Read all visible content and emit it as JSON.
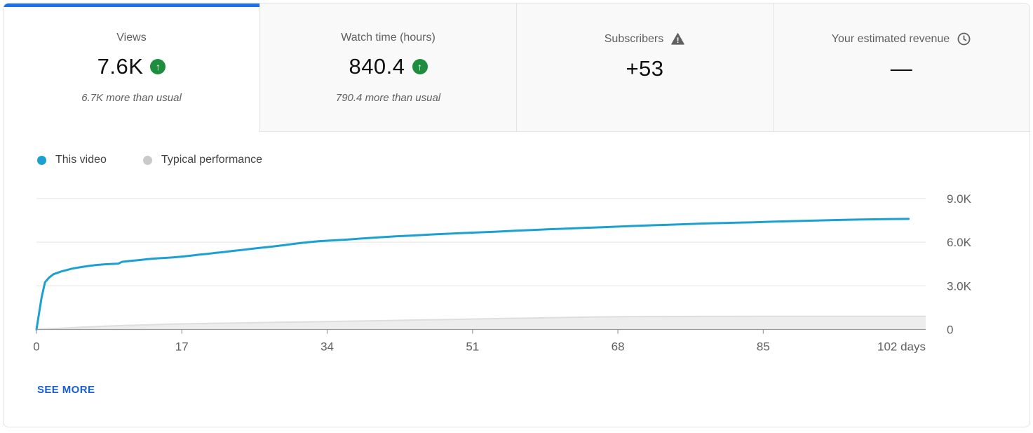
{
  "colors": {
    "accent_blue": "#1a73e8",
    "link_blue": "#1a5fd2",
    "line_blue": "#1ca0d2",
    "typical_gray": "#c9c9c9",
    "band_fill": "#ededed",
    "band_edge": "#dedede",
    "green_badge": "#1e8e3e",
    "grid_line": "#ececec",
    "axis_line": "#9a9a9a"
  },
  "icons": {
    "up_arrow": "↑",
    "warning": "triangle-exclamation",
    "clock": "clock-outline"
  },
  "tabs": [
    {
      "label": "Views",
      "value": "7.6K",
      "delta": "6.7K more than usual",
      "active": true
    },
    {
      "label": "Watch time (hours)",
      "value": "840.4",
      "delta": "790.4 more than usual",
      "active": false
    },
    {
      "label": "Subscribers",
      "value": "+53",
      "delta": "",
      "active": false
    },
    {
      "label": "Your estimated revenue",
      "value": "—",
      "delta": "",
      "active": false
    }
  ],
  "legend": [
    {
      "label": "This video",
      "color": "#1ca0d2"
    },
    {
      "label": "Typical performance",
      "color": "#c9c9c9"
    }
  ],
  "see_more_label": "SEE MORE",
  "chart_data": {
    "type": "line",
    "title": "Video views over time vs typical performance",
    "xlabel": "days",
    "ylabel": "Views",
    "xlim": [
      0,
      104
    ],
    "ylim": [
      0,
      10200
    ],
    "grid": true,
    "legend_position": "top-left",
    "x_ticks": [
      0,
      17,
      34,
      51,
      68,
      85
    ],
    "x_end_label": "102 days",
    "y_ticks": [
      {
        "value": 0,
        "label": "0"
      },
      {
        "value": 3000,
        "label": "3.0K"
      },
      {
        "value": 6000,
        "label": "6.0K"
      },
      {
        "value": 9000,
        "label": "9.0K"
      }
    ],
    "series": [
      {
        "name": "Typical performance",
        "type": "area",
        "fill_color": "#ededed",
        "edge_color": "#dedede",
        "points": [
          [
            0,
            0
          ],
          [
            2,
            60
          ],
          [
            4,
            120
          ],
          [
            6,
            175
          ],
          [
            8,
            225
          ],
          [
            10,
            270
          ],
          [
            13,
            320
          ],
          [
            16,
            370
          ],
          [
            20,
            415
          ],
          [
            24,
            455
          ],
          [
            28,
            490
          ],
          [
            32,
            525
          ],
          [
            36,
            565
          ],
          [
            40,
            605
          ],
          [
            45,
            655
          ],
          [
            50,
            705
          ],
          [
            55,
            755
          ],
          [
            60,
            805
          ],
          [
            63,
            840
          ],
          [
            66,
            870
          ],
          [
            70,
            885
          ],
          [
            75,
            893
          ],
          [
            80,
            897
          ],
          [
            85,
            900
          ],
          [
            90,
            902
          ],
          [
            95,
            904
          ],
          [
            100,
            905
          ],
          [
            104,
            905
          ]
        ]
      },
      {
        "name": "This video",
        "type": "line",
        "color": "#1ca0d2",
        "points": [
          [
            0,
            0
          ],
          [
            0.6,
            2200
          ],
          [
            1,
            3250
          ],
          [
            1.5,
            3580
          ],
          [
            2,
            3800
          ],
          [
            2.5,
            3900
          ],
          [
            3,
            4010
          ],
          [
            3.5,
            4080
          ],
          [
            4,
            4160
          ],
          [
            5,
            4270
          ],
          [
            6,
            4360
          ],
          [
            7,
            4430
          ],
          [
            8,
            4480
          ],
          [
            9,
            4510
          ],
          [
            9.6,
            4530
          ],
          [
            10,
            4650
          ],
          [
            11,
            4710
          ],
          [
            12,
            4770
          ],
          [
            13,
            4830
          ],
          [
            14,
            4880
          ],
          [
            15,
            4920
          ],
          [
            16,
            4960
          ],
          [
            17,
            5010
          ],
          [
            18,
            5070
          ],
          [
            19,
            5140
          ],
          [
            20,
            5200
          ],
          [
            21,
            5270
          ],
          [
            22,
            5330
          ],
          [
            23,
            5400
          ],
          [
            24,
            5460
          ],
          [
            25,
            5530
          ],
          [
            26,
            5600
          ],
          [
            27,
            5660
          ],
          [
            28,
            5730
          ],
          [
            29,
            5800
          ],
          [
            30,
            5880
          ],
          [
            31,
            5950
          ],
          [
            32,
            6010
          ],
          [
            33,
            6060
          ],
          [
            34,
            6100
          ],
          [
            36,
            6170
          ],
          [
            38,
            6250
          ],
          [
            40,
            6330
          ],
          [
            42,
            6400
          ],
          [
            44,
            6460
          ],
          [
            46,
            6520
          ],
          [
            48,
            6580
          ],
          [
            50,
            6630
          ],
          [
            52,
            6680
          ],
          [
            54,
            6730
          ],
          [
            56,
            6790
          ],
          [
            58,
            6840
          ],
          [
            60,
            6890
          ],
          [
            62,
            6930
          ],
          [
            64,
            6980
          ],
          [
            66,
            7020
          ],
          [
            68,
            7070
          ],
          [
            70,
            7120
          ],
          [
            72,
            7160
          ],
          [
            74,
            7200
          ],
          [
            76,
            7240
          ],
          [
            78,
            7280
          ],
          [
            80,
            7310
          ],
          [
            82,
            7340
          ],
          [
            84,
            7370
          ],
          [
            86,
            7410
          ],
          [
            88,
            7440
          ],
          [
            90,
            7470
          ],
          [
            92,
            7500
          ],
          [
            94,
            7530
          ],
          [
            96,
            7550
          ],
          [
            98,
            7570
          ],
          [
            100,
            7590
          ],
          [
            102,
            7600
          ]
        ]
      }
    ]
  }
}
